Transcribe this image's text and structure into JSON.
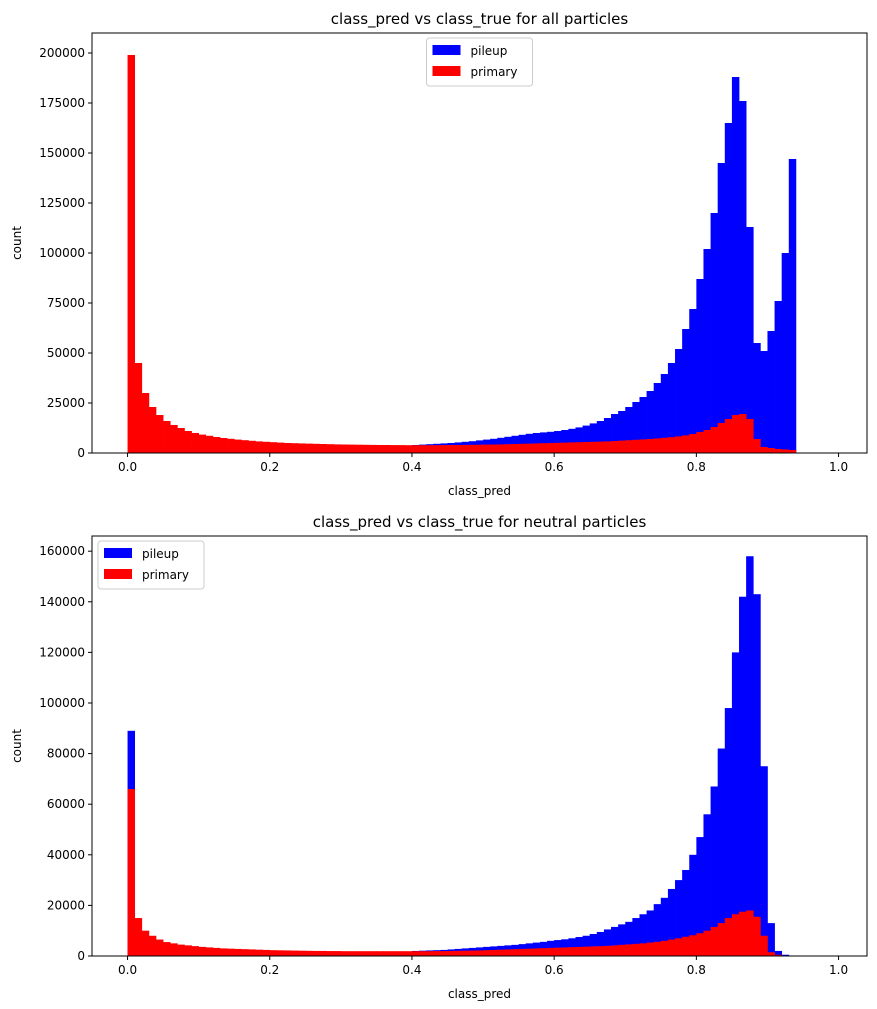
{
  "chart_data": [
    {
      "type": "bar",
      "title": "class_pred vs class_true for all particles",
      "xlabel": "class_pred",
      "ylabel": "count",
      "xlim": [
        -0.05,
        1.04
      ],
      "ylim": [
        0,
        210000
      ],
      "xticks": [
        0.0,
        0.2,
        0.4,
        0.6,
        0.8,
        1.0
      ],
      "xtick_labels": [
        "0.0",
        "0.2",
        "0.4",
        "0.6",
        "0.8",
        "1.0"
      ],
      "yticks": [
        0,
        25000,
        50000,
        75000,
        100000,
        125000,
        150000,
        175000,
        200000
      ],
      "ytick_labels": [
        "0",
        "25000",
        "50000",
        "75000",
        "100000",
        "125000",
        "150000",
        "175000",
        "200000"
      ],
      "legend_position": "top-center",
      "bin_start": 0.0,
      "bin_width": 0.01,
      "series": [
        {
          "name": "pileup",
          "color": "#0000ff",
          "values": [
            0,
            0,
            0,
            0,
            0,
            0,
            0,
            0,
            0,
            0,
            0,
            0,
            0,
            0,
            0,
            0,
            0,
            0,
            0,
            0,
            0,
            0,
            0,
            0,
            0,
            0,
            0,
            0,
            0,
            0,
            0,
            0,
            0,
            0,
            0,
            0,
            0,
            0,
            0,
            0,
            4000,
            4200,
            4400,
            4600,
            4800,
            5000,
            5300,
            5600,
            5900,
            6300,
            6700,
            7100,
            7600,
            8100,
            8600,
            9100,
            9600,
            10000,
            10300,
            10600,
            11000,
            11500,
            12100,
            12800,
            13700,
            14800,
            16000,
            17500,
            19500,
            21000,
            23000,
            25500,
            28000,
            31000,
            35000,
            39500,
            45000,
            52000,
            62000,
            72000,
            87000,
            102000,
            120000,
            145000,
            165000,
            188000,
            176000,
            113000,
            55000,
            51000,
            61000,
            76000,
            100000,
            147000
          ]
        },
        {
          "name": "primary",
          "color": "#ff0000",
          "values": [
            199000,
            45000,
            30000,
            23000,
            19000,
            16000,
            14000,
            12500,
            11000,
            10000,
            9200,
            8600,
            8000,
            7500,
            7100,
            6700,
            6400,
            6100,
            5800,
            5600,
            5400,
            5200,
            5000,
            4900,
            4800,
            4700,
            4600,
            4500,
            4400,
            4300,
            4250,
            4200,
            4150,
            4100,
            4050,
            4000,
            4000,
            3950,
            3950,
            3900,
            3900,
            3900,
            3900,
            3900,
            3950,
            4000,
            4000,
            4050,
            4100,
            4150,
            4200,
            4250,
            4300,
            4400,
            4500,
            4600,
            4700,
            4800,
            4900,
            5000,
            5100,
            5200,
            5300,
            5400,
            5500,
            5600,
            5700,
            5800,
            6000,
            6200,
            6400,
            6600,
            6800,
            7000,
            7300,
            7600,
            7900,
            8300,
            8800,
            9500,
            10500,
            11500,
            13000,
            15000,
            17000,
            19000,
            19500,
            17000,
            7000,
            3000,
            2500,
            2000,
            1800,
            1500
          ]
        }
      ]
    },
    {
      "type": "bar",
      "title": "class_pred vs class_true for neutral particles",
      "xlabel": "class_pred",
      "ylabel": "count",
      "xlim": [
        -0.05,
        1.04
      ],
      "ylim": [
        0,
        166000
      ],
      "xticks": [
        0.0,
        0.2,
        0.4,
        0.6,
        0.8,
        1.0
      ],
      "xtick_labels": [
        "0.0",
        "0.2",
        "0.4",
        "0.6",
        "0.8",
        "1.0"
      ],
      "yticks": [
        0,
        20000,
        40000,
        60000,
        80000,
        100000,
        120000,
        140000,
        160000
      ],
      "ytick_labels": [
        "0",
        "20000",
        "40000",
        "60000",
        "80000",
        "100000",
        "120000",
        "140000",
        "160000"
      ],
      "legend_position": "top-left",
      "bin_start": 0.0,
      "bin_width": 0.01,
      "series": [
        {
          "name": "pileup",
          "color": "#0000ff",
          "values": [
            89000,
            0,
            0,
            0,
            0,
            0,
            0,
            0,
            0,
            0,
            0,
            0,
            0,
            0,
            0,
            0,
            0,
            0,
            0,
            0,
            0,
            0,
            0,
            0,
            0,
            0,
            0,
            0,
            0,
            0,
            0,
            0,
            0,
            0,
            0,
            0,
            0,
            0,
            0,
            0,
            2000,
            2100,
            2200,
            2300,
            2400,
            2600,
            2800,
            3000,
            3200,
            3400,
            3600,
            3800,
            4000,
            4200,
            4400,
            4700,
            5000,
            5300,
            5600,
            6000,
            6300,
            6600,
            7000,
            7500,
            8000,
            8700,
            9500,
            10500,
            11500,
            12500,
            13500,
            15000,
            16500,
            18000,
            20500,
            23000,
            26500,
            30000,
            34000,
            40000,
            47000,
            56000,
            67000,
            82000,
            98000,
            120000,
            142000,
            158000,
            143000,
            75000,
            13000,
            2000,
            500,
            200,
            0,
            0,
            0,
            0,
            0,
            0
          ]
        },
        {
          "name": "primary",
          "color": "#ff0000",
          "values": [
            66000,
            15000,
            10000,
            8000,
            6500,
            5500,
            5000,
            4500,
            4200,
            3900,
            3600,
            3400,
            3200,
            3000,
            2900,
            2800,
            2700,
            2600,
            2500,
            2400,
            2300,
            2250,
            2200,
            2150,
            2100,
            2050,
            2000,
            2000,
            1950,
            1950,
            1900,
            1900,
            1900,
            1900,
            1900,
            1900,
            1900,
            1900,
            1900,
            1900,
            1900,
            1900,
            1900,
            1950,
            1950,
            2000,
            2050,
            2100,
            2150,
            2200,
            2300,
            2400,
            2500,
            2600,
            2700,
            2800,
            2900,
            3000,
            3100,
            3200,
            3300,
            3400,
            3500,
            3600,
            3700,
            3800,
            3900,
            4000,
            4200,
            4400,
            4600,
            4800,
            5000,
            5300,
            5600,
            6000,
            6500,
            7000,
            7600,
            8200,
            9000,
            10000,
            11500,
            13000,
            15000,
            16500,
            17500,
            18000,
            15500,
            8000,
            1500,
            500,
            200,
            0,
            0,
            0,
            0,
            0,
            0,
            0
          ]
        }
      ]
    }
  ]
}
